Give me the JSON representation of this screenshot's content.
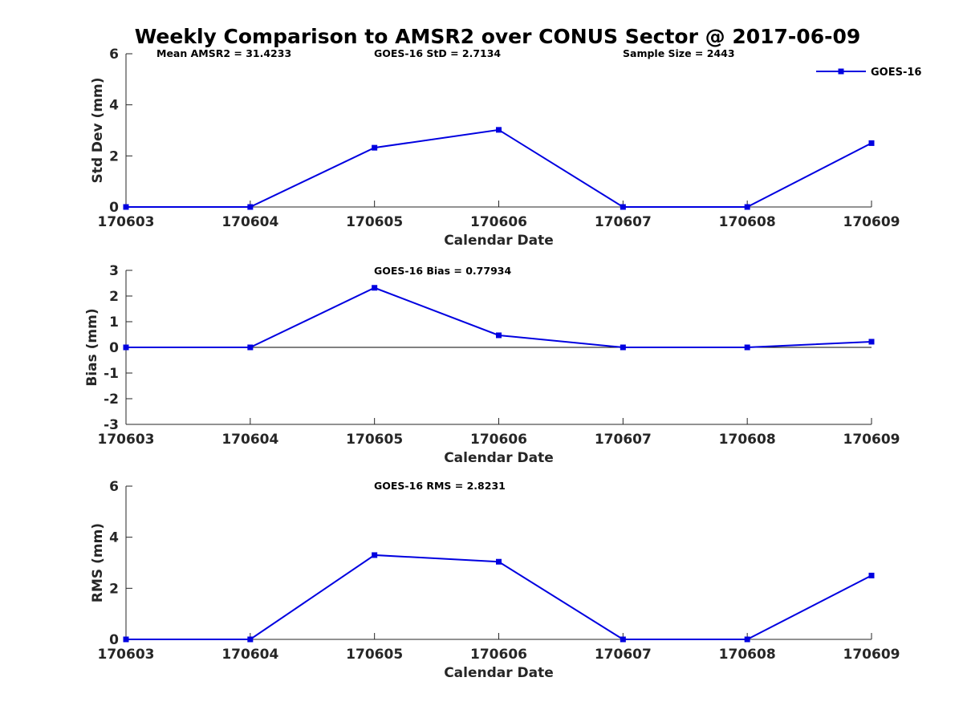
{
  "colors": {
    "series": "#0000e0",
    "axis": "#262626",
    "zero_line": "#000000"
  },
  "chart_data": {
    "type": "line",
    "title": "Weekly Comparison to AMSR2 over CONUS Sector @ 2017-06-09",
    "categories": [
      "170603",
      "170604",
      "170605",
      "170606",
      "170607",
      "170608",
      "170609"
    ],
    "legend": {
      "entries": [
        "GOES-16"
      ],
      "placement": "top-right",
      "marker": "square"
    },
    "panels": [
      {
        "id": "std",
        "xlabel": "Calendar Date",
        "ylabel": "Std Dev (mm)",
        "ylim": [
          0,
          6
        ],
        "yticks": [
          0,
          2,
          4,
          6
        ],
        "zero_line": false,
        "annotations": [
          "Mean AMSR2 = 31.4233",
          "GOES-16 StD = 2.7134",
          "Sample Size = 2443"
        ],
        "series": [
          {
            "name": "GOES-16",
            "values": [
              0,
              0,
              2.32,
              3.02,
              0,
              0,
              2.5
            ]
          }
        ]
      },
      {
        "id": "bias",
        "xlabel": "Calendar Date",
        "ylabel": "Bias (mm)",
        "ylim": [
          -3,
          3
        ],
        "yticks": [
          -3,
          -2,
          -1,
          0,
          1,
          2,
          3
        ],
        "zero_line": true,
        "annotations": [
          "GOES-16 Bias  = 0.77934"
        ],
        "series": [
          {
            "name": "GOES-16",
            "values": [
              0,
              0,
              2.32,
              0.47,
              0,
              0,
              0.22
            ]
          }
        ]
      },
      {
        "id": "rms",
        "xlabel": "Calendar Date",
        "ylabel": "RMS (mm)",
        "ylim": [
          0,
          6
        ],
        "yticks": [
          0,
          2,
          4,
          6
        ],
        "zero_line": false,
        "annotations": [
          "GOES-16 RMS = 2.8231"
        ],
        "series": [
          {
            "name": "GOES-16",
            "values": [
              0,
              0,
              3.3,
              3.04,
              0,
              0,
              2.5
            ]
          }
        ]
      }
    ]
  }
}
